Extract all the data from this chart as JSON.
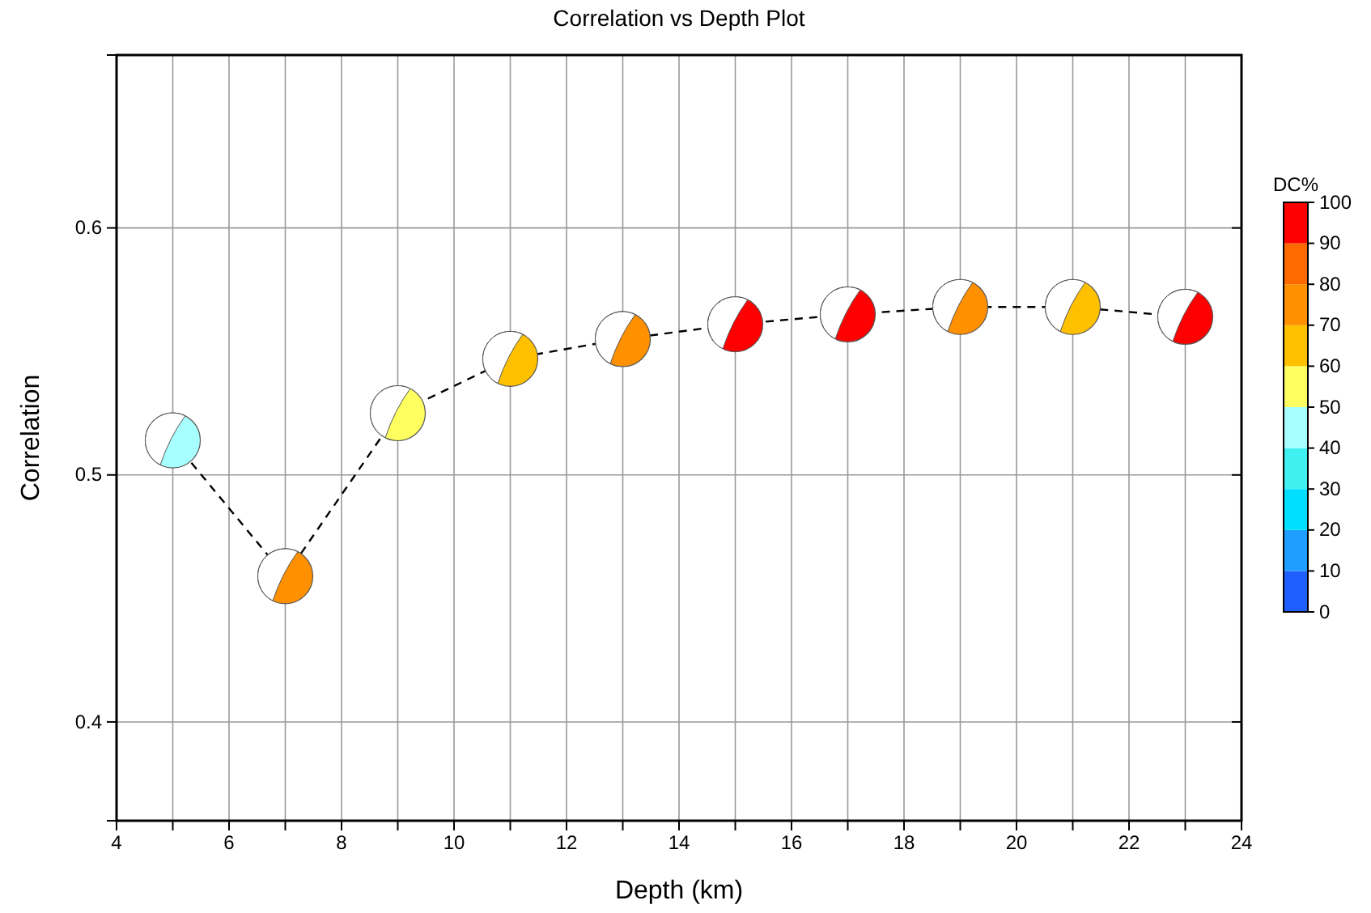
{
  "chart_data": {
    "type": "scatter",
    "title": "Correlation vs Depth Plot",
    "xlabel": "Depth (km)",
    "ylabel": "Correlation",
    "clabel": "DC%",
    "x": [
      5,
      7,
      9,
      11,
      13,
      15,
      17,
      19,
      21,
      23
    ],
    "series": [
      {
        "type": "line",
        "color": "#000000",
        "line_style": "dashed",
        "values": [
          0.514,
          0.459,
          0.525,
          0.547,
          0.555,
          0.561,
          0.565,
          0.568,
          0.568,
          0.564
        ]
      },
      {
        "marker": "circle",
        "values": [
          0.514,
          0.459,
          0.525,
          0.547,
          0.555,
          0.561,
          0.565,
          0.568,
          0.568,
          0.564
        ],
        "colors": [
          "#a8ffff",
          "#ff9000",
          "#ffff60",
          "#ffc000",
          "#ff9000",
          "#ff0000",
          "#ff0000",
          "#ff9000",
          "#ffc000",
          "#ff0000"
        ]
      }
    ],
    "xlim": [
      4,
      24
    ],
    "xticks": [
      4,
      {
        "value": 5,
        "label": null
      },
      6,
      {
        "value": 7,
        "label": null
      },
      8,
      {
        "value": 9,
        "label": null
      },
      10,
      {
        "value": 11,
        "label": null
      },
      12,
      {
        "value": 13,
        "label": null
      },
      14,
      {
        "value": 15,
        "label": null
      },
      16,
      {
        "value": 17,
        "label": null
      },
      18,
      {
        "value": 19,
        "label": null
      },
      20,
      {
        "value": 21,
        "label": null
      },
      22,
      {
        "value": 23,
        "label": null
      },
      24
    ],
    "ylim": [
      0.36,
      0.67
    ],
    "yticks": [
      0.4,
      0.5,
      0.6
    ],
    "clim": [
      0,
      100
    ],
    "cticks": [
      0,
      10,
      20,
      30,
      40,
      50,
      60,
      70,
      80,
      90,
      100
    ],
    "grid": true
  }
}
